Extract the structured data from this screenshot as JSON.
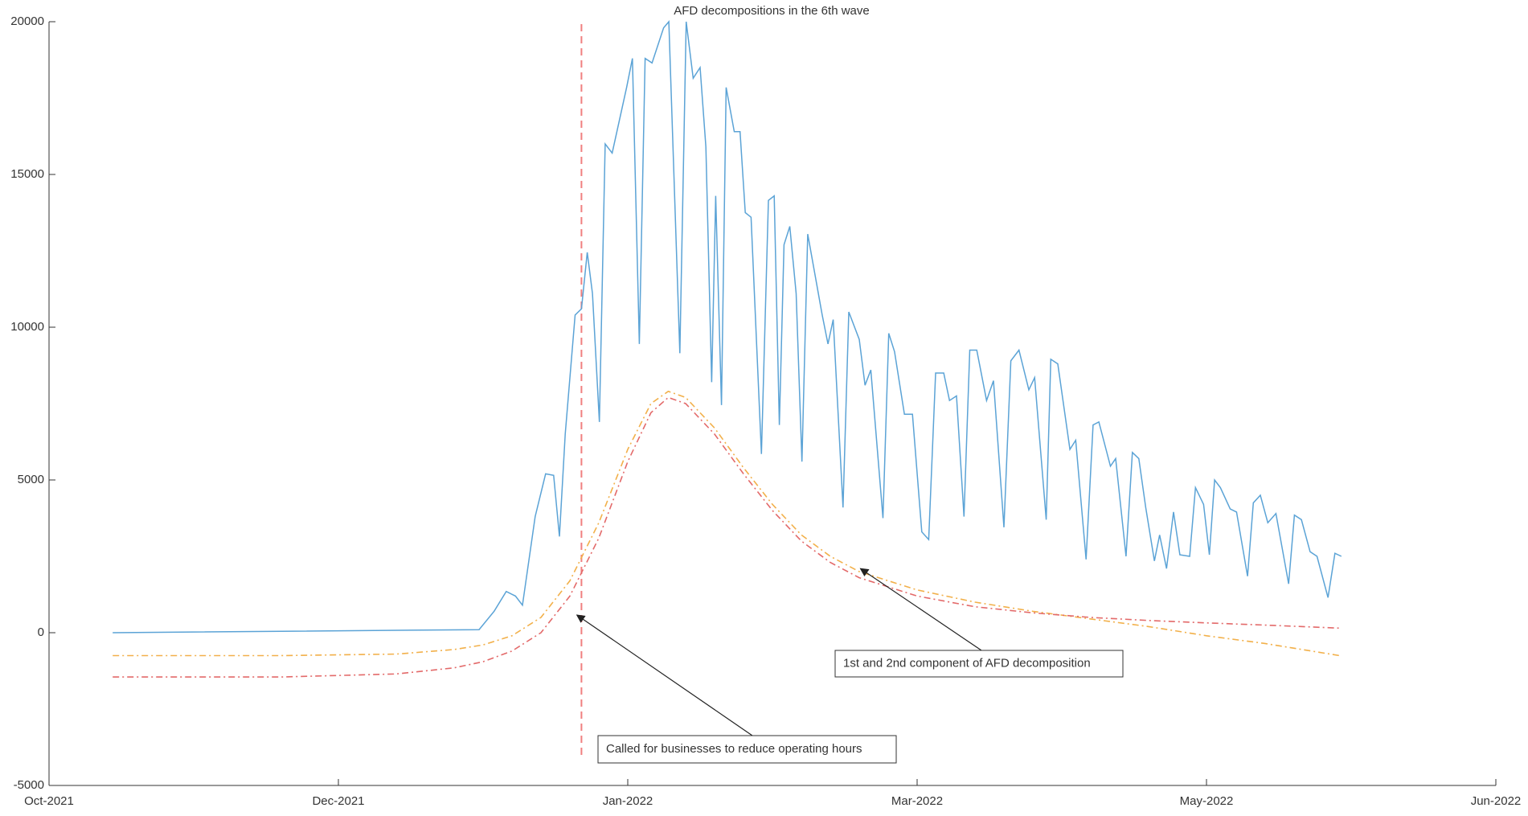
{
  "chart_data": {
    "type": "line",
    "title": "AFD decompositions in the 6th wave",
    "xlim": [
      0,
      250
    ],
    "xticks": [
      {
        "value": 0,
        "label": "Oct-2021"
      },
      {
        "value": 50,
        "label": "Dec-2021"
      },
      {
        "value": 100,
        "label": "Jan-2022"
      },
      {
        "value": 150,
        "label": "Mar-2022"
      },
      {
        "value": 200,
        "label": "May-2022"
      },
      {
        "value": 250,
        "label": "Jun-2022"
      }
    ],
    "ylim": [
      -5000,
      20000
    ],
    "yticks": [
      -5000,
      0,
      5000,
      10000,
      15000,
      20000
    ],
    "grid": false,
    "series": [
      {
        "color": "#5ba3d6",
        "dash": false,
        "x": [
          11,
          74.3,
          76.9,
          79,
          80.6,
          81.8,
          84,
          85.8,
          87.2,
          88.2,
          89.2,
          90.9,
          92,
          93,
          93.9,
          95.1,
          96.1,
          97.3,
          99.8,
          100.8,
          102,
          103,
          104.2,
          106.2,
          107.1,
          109,
          110.1,
          111.3,
          112.5,
          113.5,
          114.5,
          115.2,
          116.2,
          117,
          118.4,
          119.4,
          120.3,
          121.3,
          123.1,
          124.3,
          125.3,
          126.2,
          127,
          128,
          129.1,
          130.1,
          131.1,
          133.6,
          134.6,
          135.5,
          137.2,
          138.2,
          140,
          141,
          142,
          144.1,
          145.1,
          146.1,
          147.8,
          149.2,
          150.8,
          152,
          153.2,
          154.6,
          155.6,
          156.8,
          158.1,
          159.1,
          160.3,
          162,
          163.2,
          165,
          166.2,
          167.6,
          169.3,
          170.3,
          172.3,
          173.1,
          174.3,
          176.4,
          177.4,
          179.2,
          180.4,
          181.4,
          183.4,
          184.3,
          186.1,
          187.2,
          188.3,
          189.5,
          191,
          191.9,
          193.1,
          194.3,
          195.4,
          197.1,
          198.1,
          199.5,
          200.5,
          201.4,
          202.4,
          204.1,
          205.2,
          207.1,
          208.1,
          209.3,
          210.6,
          212,
          214.2,
          215.2,
          216.4,
          217.9,
          219.1,
          221,
          222.2,
          223.3
        ],
        "values": [
          0,
          100,
          700,
          1350,
          1200,
          900,
          3800,
          5200,
          5150,
          3150,
          6500,
          10400,
          10600,
          12450,
          11100,
          6900,
          16000,
          15700,
          17850,
          18800,
          9450,
          18800,
          18650,
          19800,
          20000,
          9150,
          20000,
          18150,
          18500,
          15900,
          8200,
          14300,
          7450,
          17850,
          16400,
          16400,
          13750,
          13600,
          5850,
          14150,
          14300,
          6800,
          12700,
          13300,
          11100,
          5600,
          13050,
          10400,
          9450,
          10250,
          4100,
          10500,
          9600,
          8100,
          8600,
          3750,
          9800,
          9200,
          7150,
          7150,
          3300,
          3050,
          8500,
          8500,
          7600,
          7750,
          3800,
          9250,
          9250,
          7600,
          8250,
          3450,
          8900,
          9250,
          7950,
          8350,
          3700,
          8950,
          8800,
          6000,
          6300,
          2400,
          6800,
          6900,
          5450,
          5700,
          2500,
          5900,
          5700,
          4100,
          2350,
          3200,
          2100,
          3950,
          2550,
          2500,
          4750,
          4200,
          2550,
          5000,
          4750,
          4050,
          3950,
          1850,
          4250,
          4500,
          3600,
          3900,
          1600,
          3850,
          3700,
          2650,
          2500,
          1150,
          2600,
          2500
        ]
      },
      {
        "color": "#f2b04a",
        "dash": true,
        "x": [
          11,
          40,
          60,
          70,
          75,
          80,
          85,
          90,
          95,
          100,
          104,
          107,
          110,
          115,
          120,
          125,
          130,
          135,
          140,
          150,
          160,
          170,
          180,
          190,
          200,
          210,
          223
        ],
        "values": [
          -750,
          -750,
          -700,
          -550,
          -400,
          -100,
          500,
          1700,
          3600,
          6000,
          7500,
          7900,
          7700,
          6700,
          5400,
          4200,
          3200,
          2500,
          2000,
          1400,
          1000,
          700,
          450,
          200,
          -100,
          -350,
          -750
        ]
      },
      {
        "color": "#e36a6a",
        "dash": true,
        "x": [
          11,
          40,
          60,
          70,
          75,
          80,
          85,
          90,
          95,
          100,
          104,
          107,
          110,
          115,
          120,
          125,
          130,
          135,
          140,
          150,
          160,
          170,
          180,
          190,
          200,
          210,
          223
        ],
        "values": [
          -1450,
          -1450,
          -1350,
          -1150,
          -950,
          -600,
          0,
          1200,
          3100,
          5600,
          7200,
          7700,
          7500,
          6500,
          5200,
          4000,
          3000,
          2300,
          1800,
          1200,
          850,
          650,
          500,
          400,
          320,
          250,
          150
        ]
      }
    ],
    "vline": {
      "x": 92,
      "y_range": [
        -4000,
        20000
      ],
      "color": "#f08080"
    },
    "annotations": [
      {
        "text": "Called for businesses to reduce operating hours",
        "x": 91.2,
        "y": 580
      },
      {
        "text": "1st and 2nd component of AFD decomposition",
        "x": 140.2,
        "y": 2100
      }
    ]
  }
}
